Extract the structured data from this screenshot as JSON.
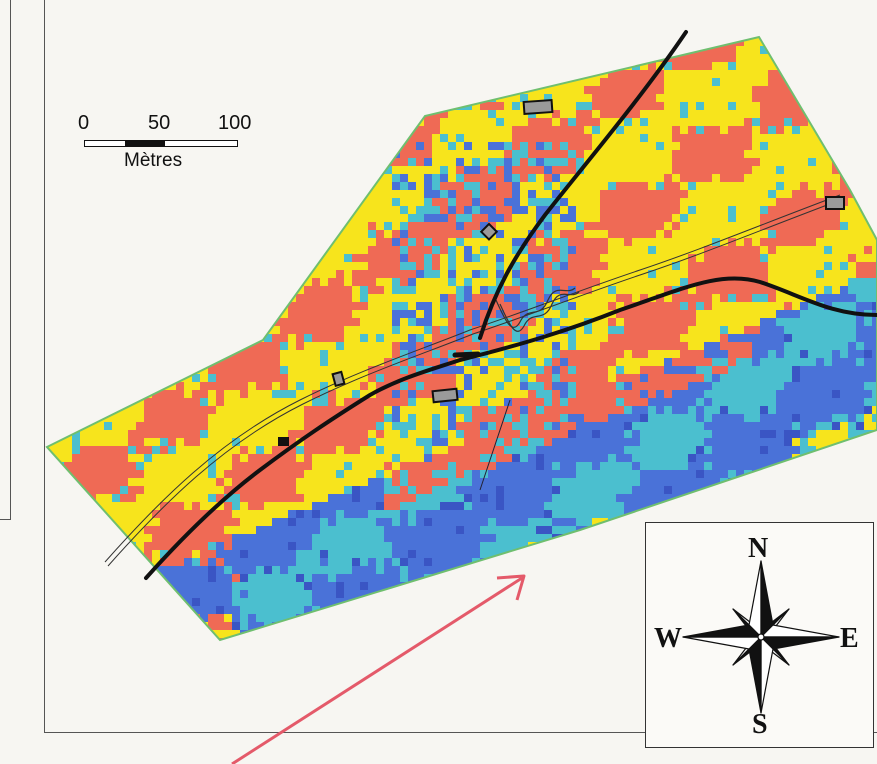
{
  "scale_bar": {
    "ticks": [
      "0",
      "50",
      "100"
    ],
    "unit": "Mètres"
  },
  "compass": {
    "north": "N",
    "east": "E",
    "south": "S",
    "west": "W"
  },
  "legend_colors": {
    "class_1": "#ef6a55",
    "class_2": "#f7e41c",
    "class_3": "#4bbfcf",
    "class_4": "#4a72d8",
    "class_5": "#3a55c4",
    "boundary": "#6fbf6f",
    "road": "#111111",
    "pointer_arrow": "#e45a6a"
  },
  "icons": [
    "compass-rose-icon",
    "scale-bar-icon",
    "pointer-arrow-icon"
  ]
}
